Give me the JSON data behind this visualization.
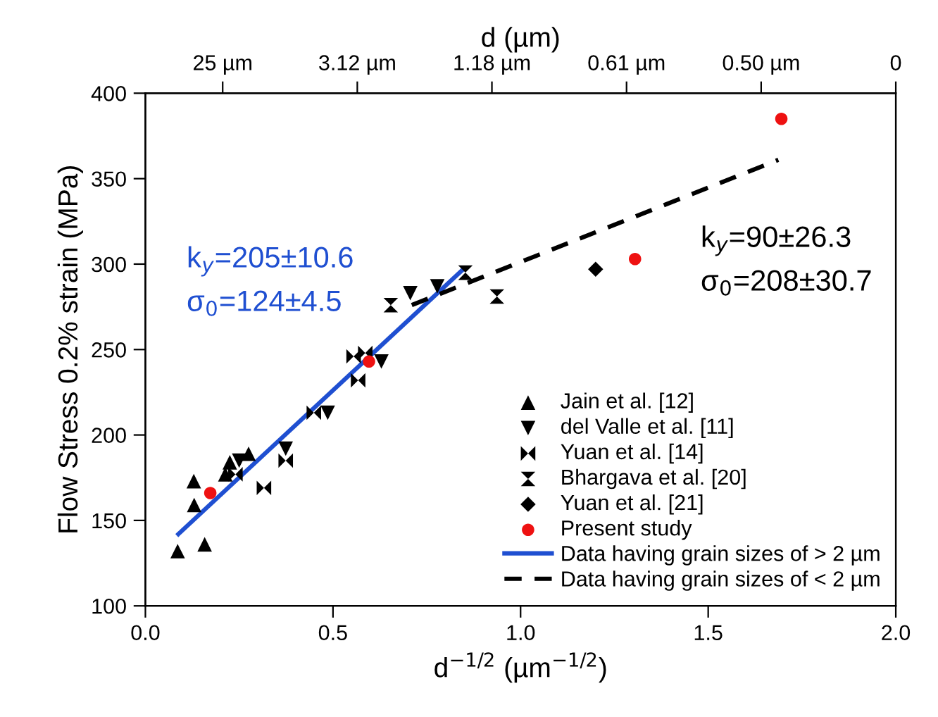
{
  "chart_data": {
    "type": "scatter",
    "xlabel": "d$^{−1/2}$ (µm$^{−1/2}$)",
    "ylabel": "Flow Stress 0.2% strain (MPa)",
    "x2label": "d (µm)",
    "xlim": [
      0,
      2
    ],
    "xticks": [
      {
        "value": 0,
        "label": "0.0"
      },
      0.5,
      {
        "value": 1,
        "label": "1.0"
      },
      1.5,
      {
        "value": 2,
        "label": "2.0"
      }
    ],
    "ylim": [
      100,
      400
    ],
    "yticks": [
      100,
      150,
      200,
      250,
      300,
      350,
      400
    ],
    "grid": false,
    "legend": "bottom right",
    "series": [
      {
        "name": "Jain et al. [12]",
        "marker": "triangle",
        "color": "#000000",
        "x": [
          0.086,
          0.129,
          0.13,
          0.158,
          0.213,
          0.225,
          0.275
        ],
        "values": [
          132,
          173,
          159,
          136,
          177,
          184,
          189
        ]
      },
      {
        "name": "del Valle et al. [11]",
        "marker": "triangle_down",
        "color": "#000000",
        "x": [
          0.25,
          0.374,
          0.486,
          0.629,
          0.706,
          0.778
        ],
        "values": [
          185,
          192,
          213,
          243,
          283,
          287
        ]
      },
      {
        "name": "Yuan et al. [14]",
        "color": "#000000",
        "x": [
          0.24,
          0.316,
          0.374,
          0.449,
          0.555,
          0.567,
          0.586
        ],
        "values": [
          177,
          169,
          185,
          213,
          246,
          232,
          248
        ]
      },
      {
        "name": "Bhargava et al. [20]",
        "color": "#000000",
        "x": [
          0.654,
          0.853,
          0.937
        ],
        "values": [
          276,
          295,
          281
        ]
      },
      {
        "name": "Yuan et al. [21]",
        "marker": "diamond",
        "color": "#000000",
        "x": [
          1.2
        ],
        "values": [
          297
        ]
      },
      {
        "name": "Present study",
        "marker": "circle",
        "color": "#ee1111",
        "x": [
          0.173,
          0.596,
          1.305,
          1.695
        ],
        "values": [
          166,
          243,
          303,
          385
        ]
      },
      {
        "name": "Data having grain sizes of > 2 µm",
        "type": "line",
        "marker": "none",
        "line_style": "solid",
        "color": "#1f4fd1",
        "x": [
          0.088,
          0.847
        ],
        "values": [
          142,
          297
        ]
      },
      {
        "name": "Data having grain sizes of < 2 µm",
        "type": "line",
        "marker": "none",
        "line_style": "dashed",
        "color": "#000000",
        "x": [
          0.71,
          1.687
        ],
        "values": [
          276,
          361
        ]
      }
    ],
    "annotations": [
      "k$_{y}$=205±10.6",
      "σ$_{0}$=124±4.5",
      "k$_{y}$=90±26.3",
      "σ$_{0}$=208±30.7",
      "25 µm",
      "3.12 µm",
      "1.18 µm",
      "0.61 µm",
      "0.50 µm",
      "0"
    ]
  }
}
